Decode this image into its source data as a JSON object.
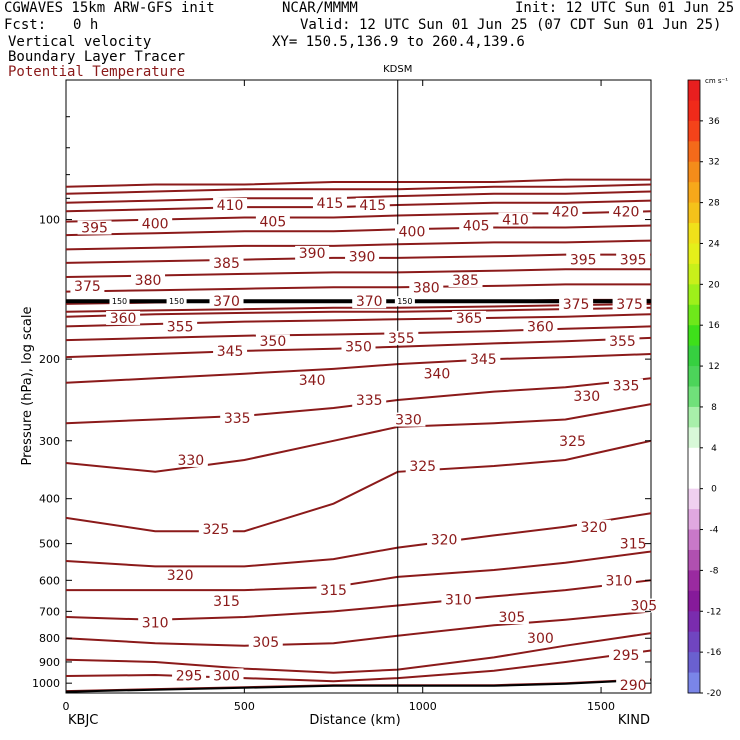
{
  "header": {
    "model": "CGWAVES 15km ARW-GFS init",
    "org": "NCAR/MMMM",
    "init": "Init: 12 UTC Sun 01 Jun 25",
    "fcst_label": "Fcst:",
    "fcst_value": "0 h",
    "valid": "Valid: 12 UTC Sun 01 Jun 25 (07 CDT Sun 01 Jun 25)",
    "field1": "Vertical velocity",
    "field2": "Boundary Layer Tracer",
    "field3": "Potential Temperature",
    "xy": "XY= 150.5,136.9 to 260.4,139.6"
  },
  "colors": {
    "contour": "#8b1a1a",
    "field3_text": "#8b1a1a"
  },
  "chart_data": {
    "type": "line",
    "title": "",
    "xlabel": "Distance (km)",
    "ylabel": "Pressure (hPa), log scale",
    "xlim": [
      0,
      1640
    ],
    "ylim": [
      1050,
      50
    ],
    "y_scale": "log",
    "x_ticks": [
      "0",
      "500",
      "1000",
      "1500"
    ],
    "y_ticks": [
      "100",
      "200",
      "300",
      "400",
      "500",
      "600",
      "700",
      "800",
      "900",
      "1000"
    ],
    "endpoint_left": "KBJC",
    "endpoint_right": "KIND",
    "marker": {
      "label": "KDSM",
      "x": 930
    },
    "x": [
      0,
      250,
      500,
      750,
      930,
      1200,
      1400,
      1640
    ],
    "series": [
      {
        "name": "290",
        "values": [
          1040,
          1030,
          1020,
          1010,
          1010,
          1010,
          1000,
          980
        ]
      },
      {
        "name": "295",
        "values": [
          965,
          960,
          975,
          990,
          975,
          940,
          900,
          850
        ]
      },
      {
        "name": "300",
        "values": [
          890,
          900,
          930,
          950,
          935,
          880,
          830,
          780
        ]
      },
      {
        "name": "305",
        "values": [
          800,
          820,
          830,
          820,
          790,
          750,
          730,
          700
        ]
      },
      {
        "name": "310",
        "values": [
          720,
          730,
          720,
          700,
          680,
          650,
          630,
          600
        ]
      },
      {
        "name": "315",
        "values": [
          630,
          630,
          630,
          620,
          590,
          570,
          550,
          520
        ]
      },
      {
        "name": "320",
        "values": [
          545,
          560,
          560,
          540,
          510,
          480,
          460,
          430
        ]
      },
      {
        "name": "325",
        "values": [
          440,
          470,
          470,
          410,
          350,
          340,
          330,
          300
        ]
      },
      {
        "name": "330",
        "values": [
          335,
          350,
          330,
          300,
          280,
          275,
          270,
          250
        ]
      },
      {
        "name": "335",
        "values": [
          275,
          270,
          265,
          255,
          245,
          235,
          230,
          220
        ]
      },
      {
        "name": "340",
        "values": [
          225,
          220,
          215,
          210,
          205,
          200,
          198,
          195
        ]
      },
      {
        "name": "345",
        "values": [
          198,
          195,
          192,
          190,
          188,
          185,
          183,
          180
        ]
      },
      {
        "name": "350",
        "values": [
          182,
          180,
          178,
          177,
          176,
          174,
          172,
          170
        ]
      },
      {
        "name": "355",
        "values": [
          170,
          168,
          166,
          165,
          164,
          163,
          162,
          160
        ]
      },
      {
        "name": "360",
        "values": [
          162,
          160,
          159,
          158,
          158,
          157,
          156,
          155
        ]
      },
      {
        "name": "365",
        "values": [
          158,
          157,
          156,
          155,
          155,
          154,
          153,
          152
        ]
      },
      {
        "name": "370",
        "values": [
          152,
          151,
          150,
          150,
          150,
          150,
          149,
          149
        ]
      },
      {
        "name": "375",
        "values": [
          143,
          142,
          141,
          140,
          140,
          139,
          138,
          138
        ]
      },
      {
        "name": "380",
        "values": [
          133,
          132,
          131,
          130,
          130,
          129,
          128,
          128
        ]
      },
      {
        "name": "385",
        "values": [
          124,
          123,
          122,
          121,
          121,
          120,
          119,
          119
        ]
      },
      {
        "name": "390",
        "values": [
          116,
          115,
          114,
          114,
          113,
          112,
          112,
          111
        ]
      },
      {
        "name": "395",
        "values": [
          108,
          107,
          106,
          106,
          105,
          104,
          104,
          103
        ]
      },
      {
        "name": "400",
        "values": [
          101,
          100,
          99,
          99,
          98,
          97,
          97,
          96
        ]
      },
      {
        "name": "405",
        "values": [
          96,
          95,
          94,
          94,
          93,
          92,
          92,
          91
        ]
      },
      {
        "name": "410",
        "values": [
          92,
          91,
          90,
          90,
          89,
          88,
          88,
          87
        ]
      },
      {
        "name": "415",
        "values": [
          88,
          87,
          86,
          86,
          86,
          85,
          85,
          84
        ]
      },
      {
        "name": "420",
        "values": [
          85,
          84,
          84,
          83,
          83,
          83,
          82,
          82
        ]
      }
    ],
    "labels": [
      {
        "text": "290",
        "x": 1590,
        "p": 1008
      },
      {
        "text": "295",
        "x": 345,
        "p": 962
      },
      {
        "text": "300",
        "x": 450,
        "p": 962
      },
      {
        "text": "295",
        "x": 1570,
        "p": 870
      },
      {
        "text": "300",
        "x": 1330,
        "p": 800
      },
      {
        "text": "305",
        "x": 560,
        "p": 815
      },
      {
        "text": "305",
        "x": 1250,
        "p": 720
      },
      {
        "text": "305",
        "x": 1620,
        "p": 680
      },
      {
        "text": "310",
        "x": 250,
        "p": 740
      },
      {
        "text": "310",
        "x": 1100,
        "p": 660
      },
      {
        "text": "310",
        "x": 1550,
        "p": 600
      },
      {
        "text": "315",
        "x": 450,
        "p": 665
      },
      {
        "text": "315",
        "x": 750,
        "p": 630
      },
      {
        "text": "315",
        "x": 1590,
        "p": 500
      },
      {
        "text": "320",
        "x": 320,
        "p": 585
      },
      {
        "text": "320",
        "x": 1060,
        "p": 490
      },
      {
        "text": "320",
        "x": 1480,
        "p": 460
      },
      {
        "text": "325",
        "x": 420,
        "p": 465
      },
      {
        "text": "325",
        "x": 1000,
        "p": 340
      },
      {
        "text": "325",
        "x": 1420,
        "p": 300
      },
      {
        "text": "330",
        "x": 350,
        "p": 330
      },
      {
        "text": "330",
        "x": 960,
        "p": 270
      },
      {
        "text": "330",
        "x": 1460,
        "p": 240
      },
      {
        "text": "335",
        "x": 480,
        "p": 268
      },
      {
        "text": "335",
        "x": 850,
        "p": 245
      },
      {
        "text": "335",
        "x": 1570,
        "p": 228
      },
      {
        "text": "340",
        "x": 690,
        "p": 222
      },
      {
        "text": "340",
        "x": 1040,
        "p": 215
      },
      {
        "text": "345",
        "x": 460,
        "p": 192
      },
      {
        "text": "345",
        "x": 1170,
        "p": 200
      },
      {
        "text": "350",
        "x": 580,
        "p": 183
      },
      {
        "text": "350",
        "x": 820,
        "p": 188
      },
      {
        "text": "355",
        "x": 320,
        "p": 170
      },
      {
        "text": "355",
        "x": 940,
        "p": 180
      },
      {
        "text": "355",
        "x": 1560,
        "p": 183
      },
      {
        "text": "360",
        "x": 160,
        "p": 163
      },
      {
        "text": "360",
        "x": 1330,
        "p": 170
      },
      {
        "text": "365",
        "x": 1130,
        "p": 163
      },
      {
        "text": "370",
        "x": 450,
        "p": 150
      },
      {
        "text": "370",
        "x": 850,
        "p": 150
      },
      {
        "text": "375",
        "x": 1430,
        "p": 152
      },
      {
        "text": "375",
        "x": 1580,
        "p": 152
      },
      {
        "text": "375",
        "x": 60,
        "p": 139
      },
      {
        "text": "380",
        "x": 230,
        "p": 135
      },
      {
        "text": "380",
        "x": 1010,
        "p": 140
      },
      {
        "text": "385",
        "x": 450,
        "p": 124
      },
      {
        "text": "385",
        "x": 1120,
        "p": 135
      },
      {
        "text": "390",
        "x": 690,
        "p": 118
      },
      {
        "text": "390",
        "x": 830,
        "p": 120
      },
      {
        "text": "395",
        "x": 80,
        "p": 104
      },
      {
        "text": "395",
        "x": 1450,
        "p": 122
      },
      {
        "text": "395",
        "x": 1590,
        "p": 122
      },
      {
        "text": "400",
        "x": 250,
        "p": 102
      },
      {
        "text": "400",
        "x": 970,
        "p": 106
      },
      {
        "text": "405",
        "x": 580,
        "p": 101
      },
      {
        "text": "405",
        "x": 1150,
        "p": 103
      },
      {
        "text": "410",
        "x": 460,
        "p": 93
      },
      {
        "text": "410",
        "x": 1260,
        "p": 100
      },
      {
        "text": "415",
        "x": 740,
        "p": 92
      },
      {
        "text": "415",
        "x": 860,
        "p": 93
      },
      {
        "text": "420",
        "x": 1400,
        "p": 96
      },
      {
        "text": "420",
        "x": 1570,
        "p": 96
      }
    ],
    "trop_pressure": 150,
    "trop_labels": [
      {
        "text": "150",
        "x": 150
      },
      {
        "text": "150",
        "x": 310
      },
      {
        "text": "150",
        "x": 950
      }
    ],
    "colorbar": {
      "units": "cm s⁻¹",
      "ticks": [
        "36",
        "32",
        "28",
        "24",
        "20",
        "16",
        "12",
        "8",
        "4",
        "0",
        "-4",
        "-8",
        "-12",
        "-16",
        "-20"
      ],
      "colors": [
        "#e81f1f",
        "#f02a1a",
        "#f5431a",
        "#f56a1a",
        "#f58c1a",
        "#f7a81a",
        "#f5c21a",
        "#f0e11a",
        "#e5ef1a",
        "#c8f01a",
        "#9ef01a",
        "#6ee81a",
        "#3ee01a",
        "#36d040",
        "#4cd45a",
        "#70e07a",
        "#a8efaa",
        "#d8f8d8",
        "#ffffff",
        "#ffffff",
        "#f0d0f0",
        "#e0a8e0",
        "#c878c8",
        "#b050b0",
        "#9a2aa0",
        "#861a9a",
        "#7a2cae",
        "#7045c0",
        "#6a60d0",
        "#7a85e8"
      ]
    }
  }
}
